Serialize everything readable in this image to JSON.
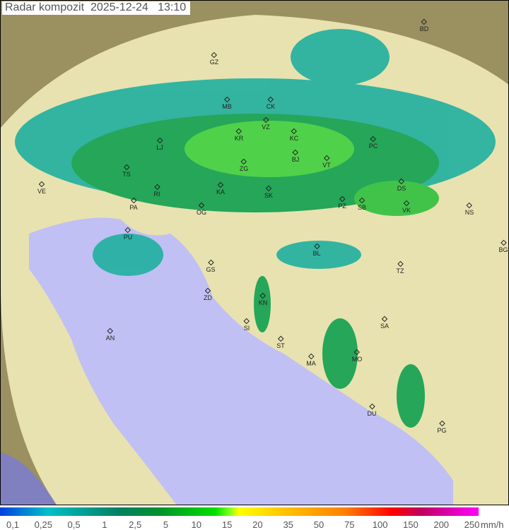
{
  "title": "Radar kompozit  2025-12-24   13:10",
  "colors": {
    "land": "#e8e2b0",
    "sea": "#c0c0f4",
    "outside": "#9a9060",
    "radar_light": "#20b0a0",
    "radar_mid": "#10a050",
    "radar_strong": "#40e040"
  },
  "cities": [
    "BD",
    "GZ",
    "MB",
    "CK",
    "KR",
    "VZ",
    "KC",
    "LJ",
    "ZG",
    "BJ",
    "VT",
    "PC",
    "TS",
    "VE",
    "RI",
    "KA",
    "SK",
    "DS",
    "PA",
    "OG",
    "PZ",
    "SB",
    "VK",
    "NS",
    "PU",
    "BL",
    "BG",
    "GS",
    "TZ",
    "ZD",
    "KN",
    "SA",
    "SI",
    "ST",
    "AN",
    "MO",
    "MA",
    "DU",
    "PG"
  ],
  "legend": {
    "ticks": [
      "0,1",
      "0,25",
      "0,5",
      "1",
      "2,5",
      "5",
      "10",
      "15",
      "20",
      "35",
      "50",
      "75",
      "100",
      "150",
      "200",
      "250"
    ],
    "unit": "mm/h"
  }
}
